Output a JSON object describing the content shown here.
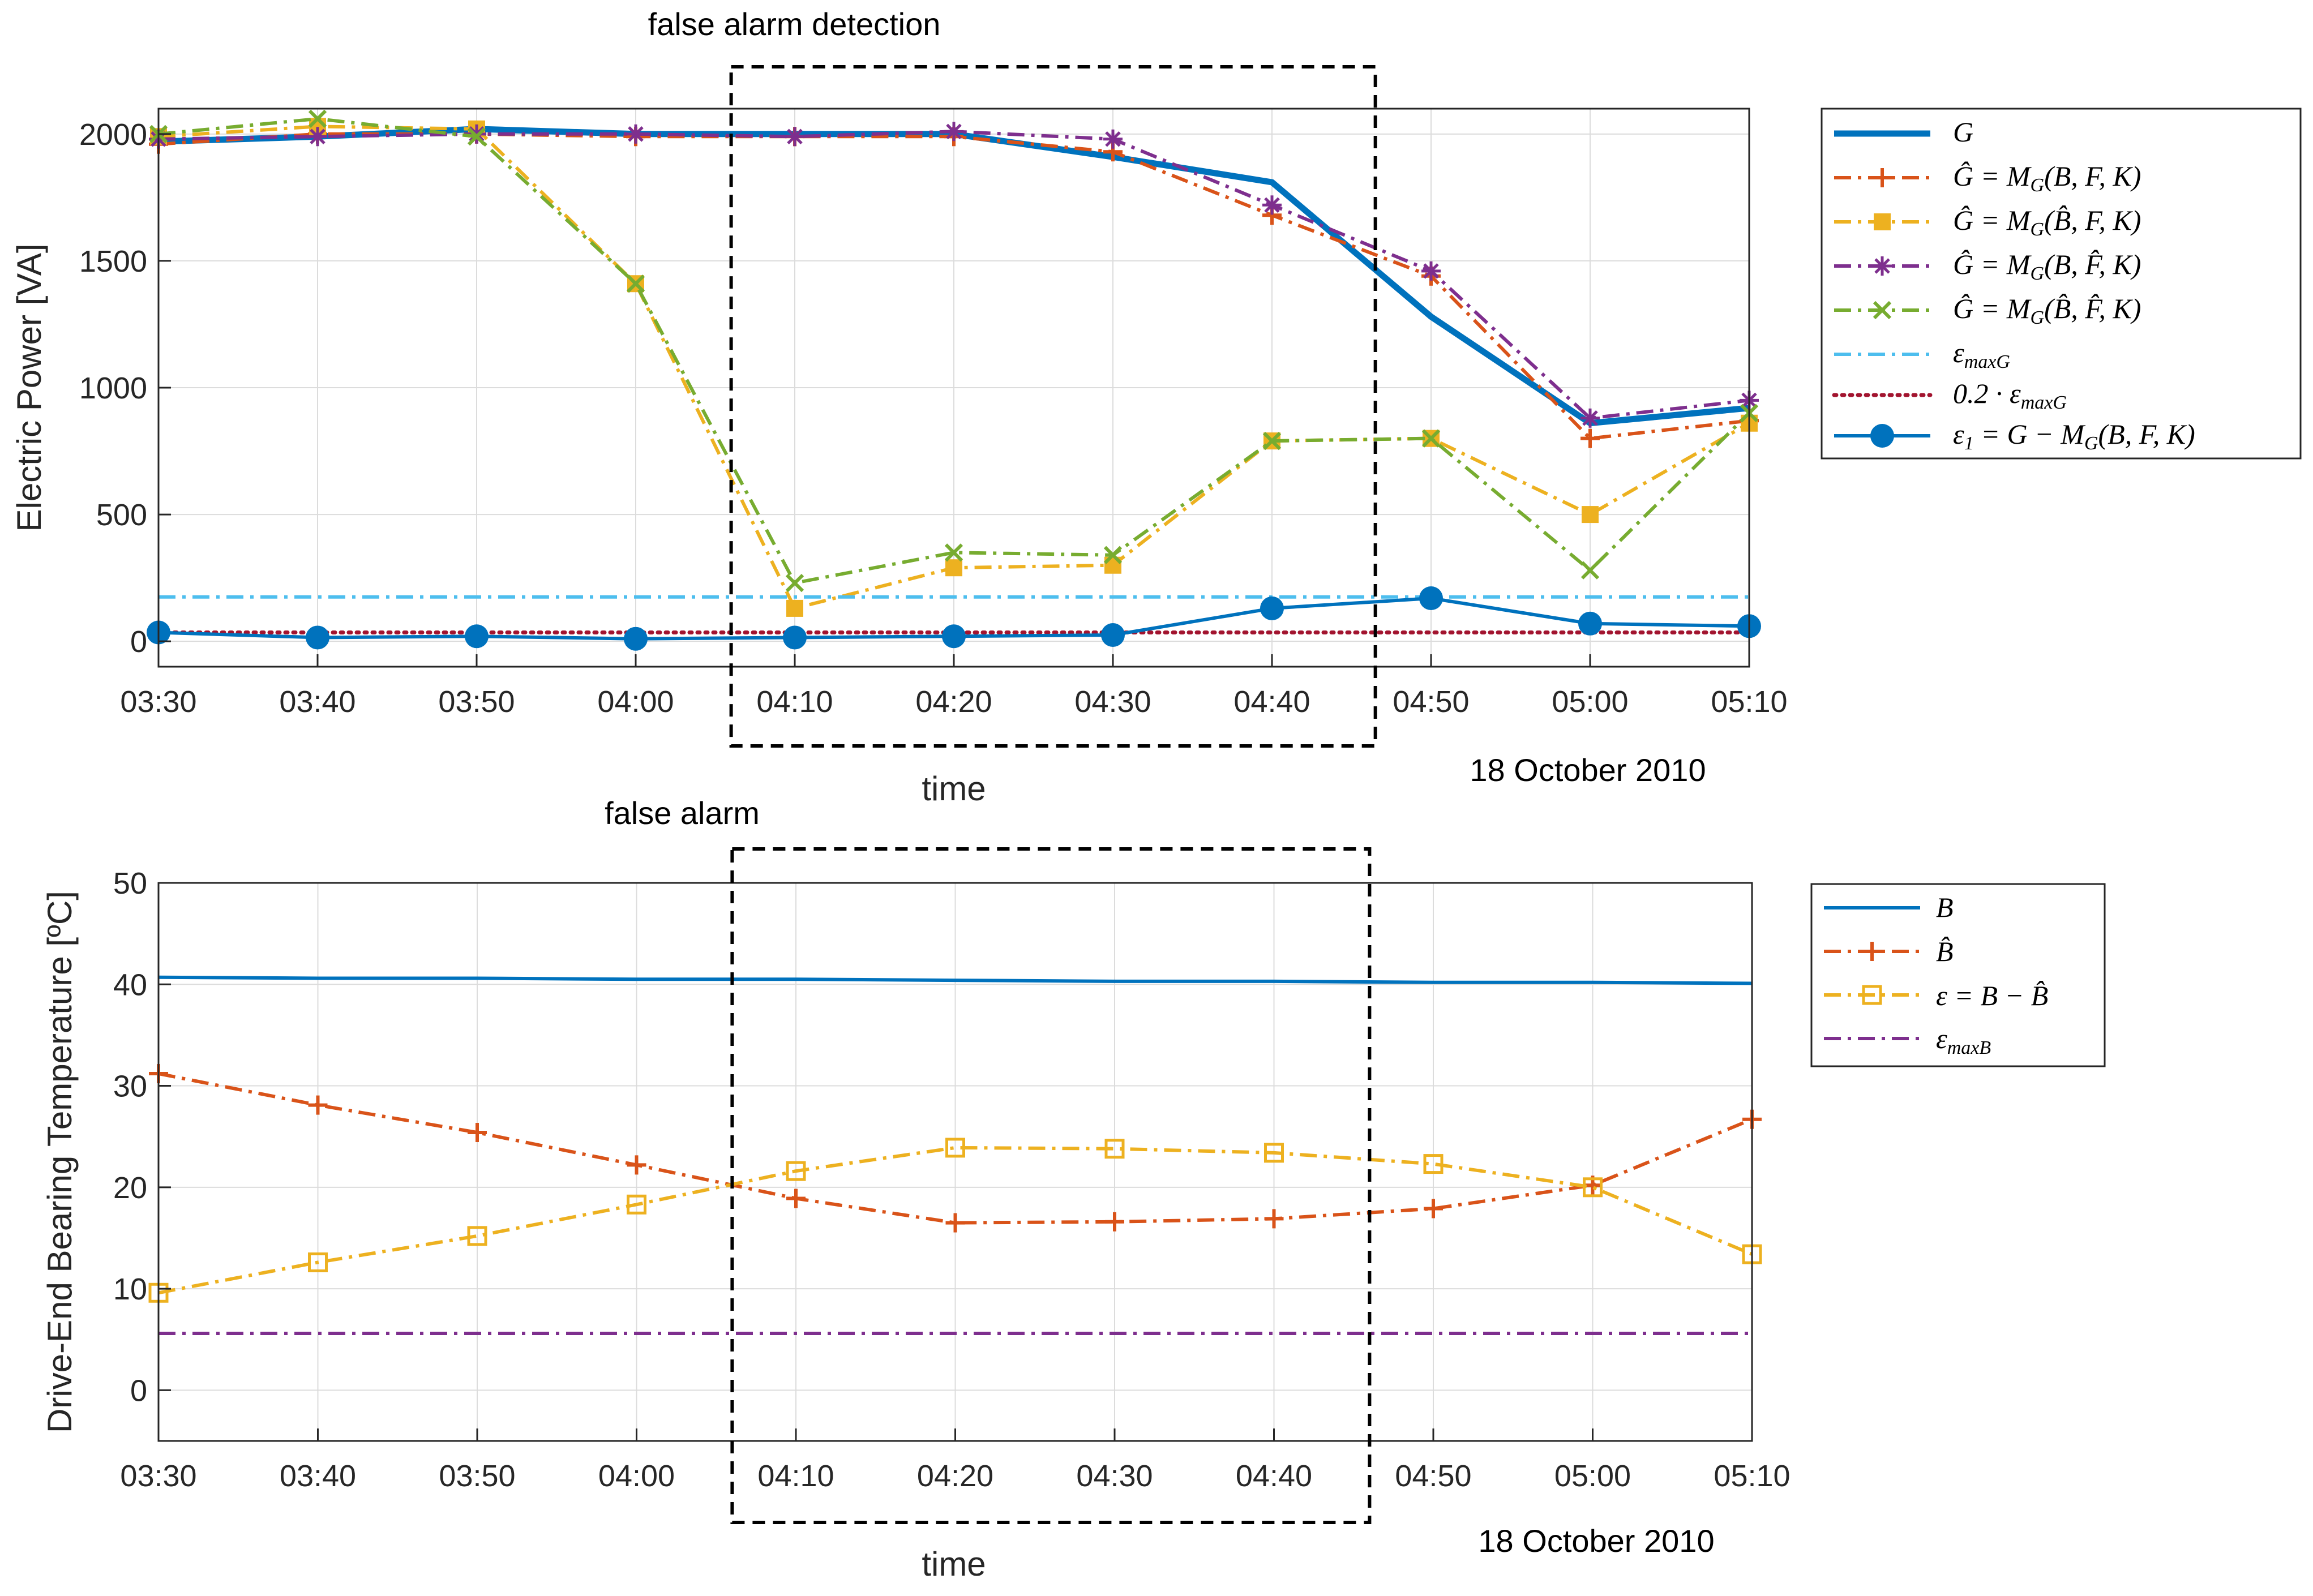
{
  "chart_data": [
    {
      "type": "line",
      "ylabel": "Electric Power [VA]",
      "xlabel": "time",
      "date_label": "18 October 2010",
      "annotation": "false alarm detection",
      "x": [
        "03:30",
        "03:40",
        "03:50",
        "04:00",
        "04:10",
        "04:20",
        "04:30",
        "04:40",
        "04:50",
        "05:00",
        "05:10"
      ],
      "ylim": [
        -100,
        2100
      ],
      "yticks": [
        0,
        500,
        1000,
        1500,
        2000
      ],
      "grid": true,
      "legend_position": "outside-right",
      "annotation_box_x": [
        3.6,
        7.65
      ],
      "series": [
        {
          "name": "G",
          "legend": "G",
          "color": "#0072BD",
          "dash": "solid",
          "width": 11,
          "marker": "none",
          "values": [
            1970,
            1990,
            2020,
            2000,
            2000,
            2000,
            1910,
            1810,
            1280,
            860,
            920
          ]
        },
        {
          "name": "G_hat_B_F_K",
          "legend": "Ĝ = M_G(B, F, K)",
          "color": "#D95319",
          "dash": "dashdot",
          "width": 6,
          "marker": "plus",
          "values": [
            1960,
            2000,
            2000,
            1990,
            1990,
            1990,
            1930,
            1680,
            1440,
            800,
            870
          ]
        },
        {
          "name": "G_hat_Bhat_F_K",
          "legend": "Ĝ = M_G(B̂, F, K)",
          "color": "#EDB120",
          "dash": "dashdot",
          "width": 6,
          "marker": "square-filled",
          "values": [
            1990,
            2030,
            2020,
            1410,
            130,
            290,
            300,
            790,
            800,
            500,
            860
          ]
        },
        {
          "name": "G_hat_B_Fhat_K",
          "legend": "Ĝ = M_G(B, F̂, K)",
          "color": "#7E2F8E",
          "dash": "dashdot",
          "width": 6,
          "marker": "asterisk",
          "values": [
            1980,
            1990,
            2000,
            2000,
            1990,
            2010,
            1980,
            1720,
            1460,
            880,
            950
          ]
        },
        {
          "name": "G_hat_Bhat_Fhat_K",
          "legend": "Ĝ = M_G(B̂, F̂, K)",
          "color": "#77AC30",
          "dash": "dashdot",
          "width": 6,
          "marker": "x",
          "values": [
            2000,
            2060,
            1990,
            1410,
            230,
            350,
            340,
            790,
            800,
            280,
            900
          ]
        },
        {
          "name": "eps_maxG",
          "legend": "ε_maxG",
          "color": "#4DBEEE",
          "dash": "dashdot",
          "width": 6,
          "marker": "none",
          "values": [
            175,
            175,
            175,
            175,
            175,
            175,
            175,
            175,
            175,
            175,
            175
          ]
        },
        {
          "name": "0.2_eps_maxG",
          "legend": "0.2 · ε_maxG",
          "color": "#A2142F",
          "dash": "dotted",
          "width": 7,
          "marker": "none",
          "values": [
            35,
            35,
            35,
            35,
            35,
            35,
            35,
            35,
            35,
            35,
            35
          ]
        },
        {
          "name": "eps1",
          "legend": "ε1 = G − M_G(B, F, K)",
          "color": "#0072BD",
          "dash": "solid",
          "width": 6,
          "marker": "circle-filled",
          "values": [
            35,
            15,
            20,
            10,
            15,
            20,
            25,
            130,
            170,
            70,
            60
          ]
        }
      ]
    },
    {
      "type": "line",
      "ylabel": "Drive-End Bearing Temperature [ºC]",
      "xlabel": "time",
      "date_label": "18 October 2010",
      "annotation": "false alarm",
      "x": [
        "03:30",
        "03:40",
        "03:50",
        "04:00",
        "04:10",
        "04:20",
        "04:30",
        "04:40",
        "04:50",
        "05:00",
        "05:10"
      ],
      "ylim": [
        -5,
        50
      ],
      "yticks": [
        0,
        10,
        20,
        30,
        40,
        50
      ],
      "grid": true,
      "legend_position": "outside-right",
      "annotation_box_x": [
        3.6,
        7.6
      ],
      "series": [
        {
          "name": "B",
          "legend": "B",
          "color": "#0072BD",
          "dash": "solid",
          "width": 6,
          "marker": "none",
          "values": [
            40.7,
            40.6,
            40.6,
            40.5,
            40.5,
            40.4,
            40.3,
            40.3,
            40.2,
            40.2,
            40.1
          ]
        },
        {
          "name": "B_hat",
          "legend": "B̂",
          "color": "#D95319",
          "dash": "dashdot",
          "width": 6,
          "marker": "plus",
          "values": [
            31.2,
            28.1,
            25.4,
            22.2,
            18.9,
            16.5,
            16.6,
            16.9,
            17.9,
            20.2,
            26.7
          ]
        },
        {
          "name": "eps",
          "legend": "ε = B − B̂",
          "color": "#EDB120",
          "dash": "dashdot",
          "width": 6,
          "marker": "square-open",
          "values": [
            9.6,
            12.6,
            15.2,
            18.3,
            21.6,
            23.9,
            23.8,
            23.4,
            22.3,
            20.0,
            13.4
          ]
        },
        {
          "name": "eps_maxB",
          "legend": "ε_maxB",
          "color": "#7E2F8E",
          "dash": "dashdot",
          "width": 6,
          "marker": "none",
          "values": [
            5.6,
            5.6,
            5.6,
            5.6,
            5.6,
            5.6,
            5.6,
            5.6,
            5.6,
            5.6,
            5.6
          ]
        }
      ]
    }
  ]
}
